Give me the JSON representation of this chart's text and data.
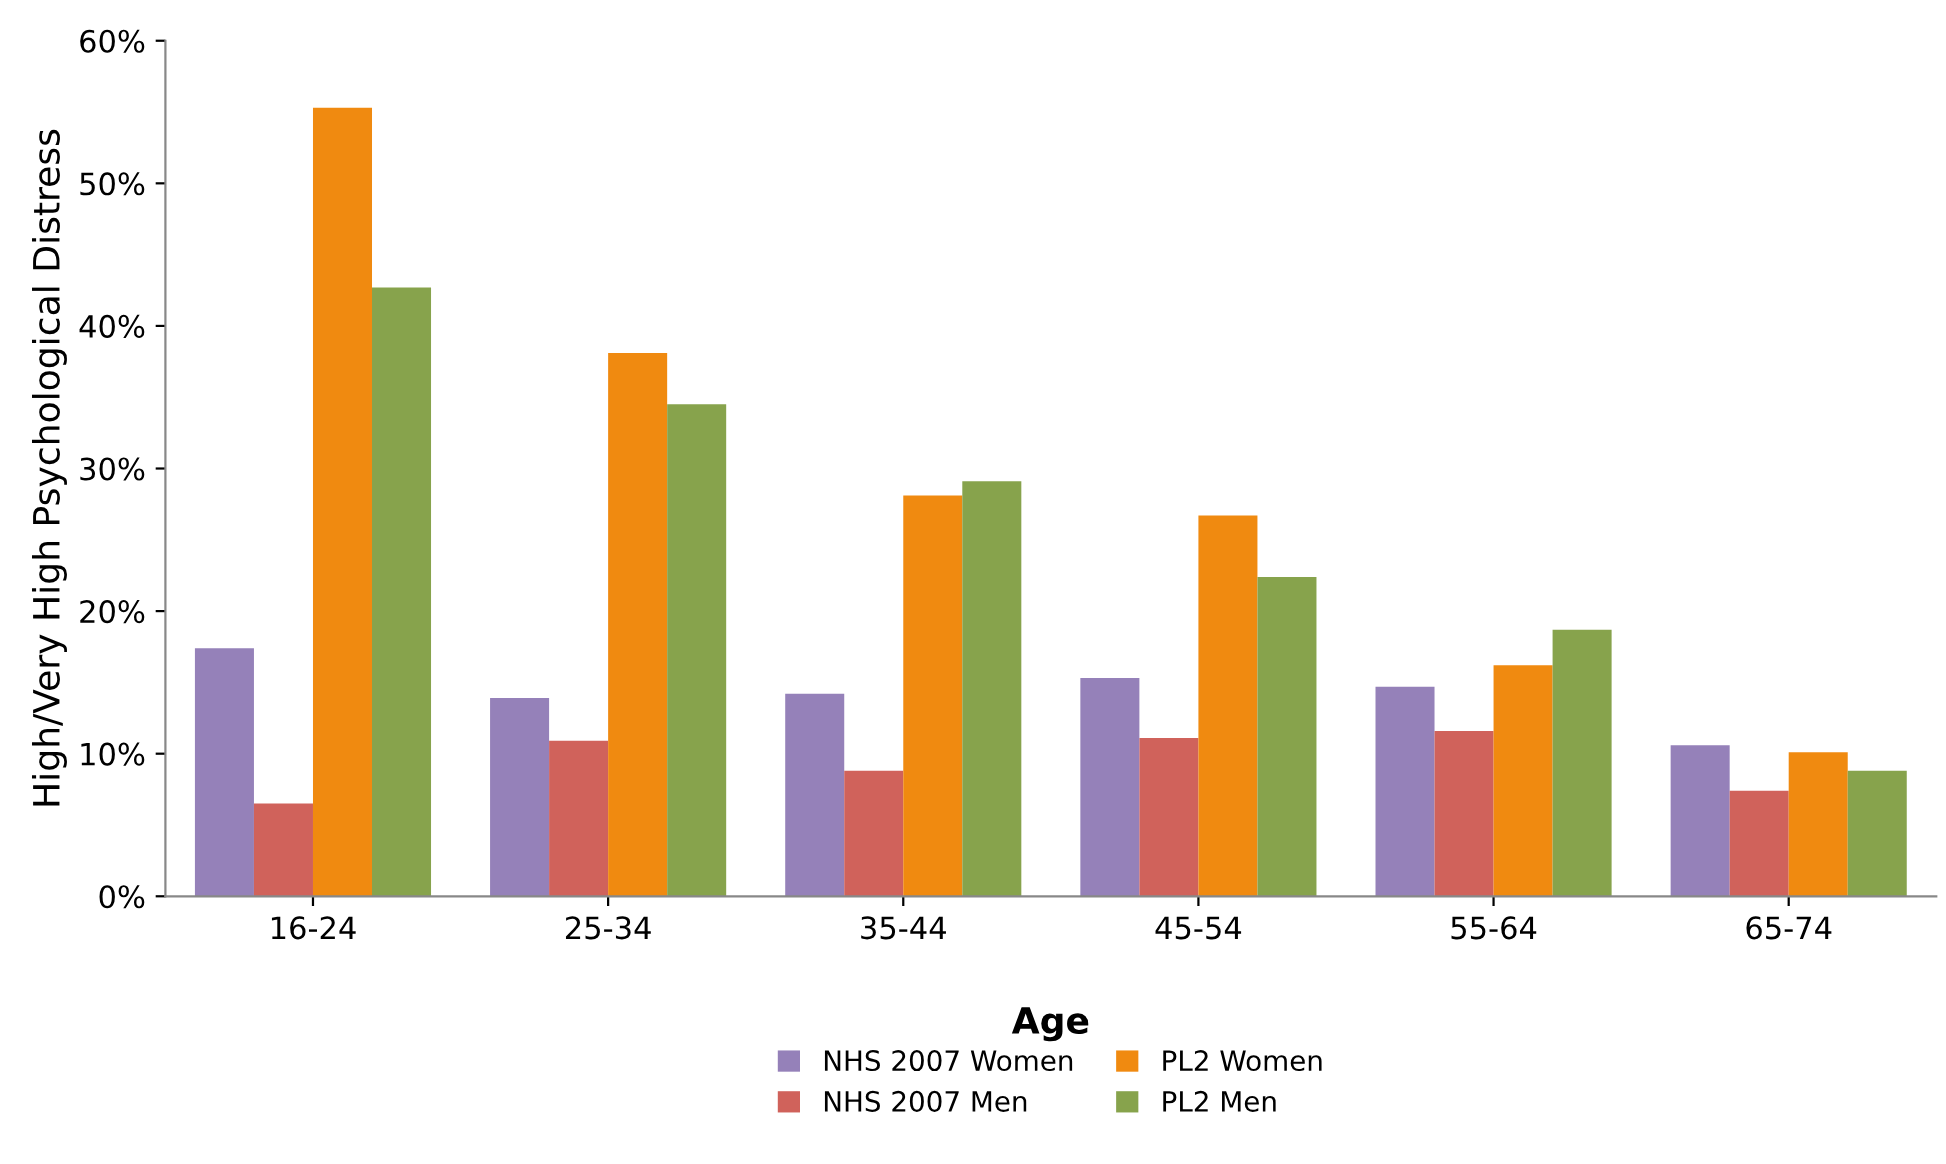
{
  "chart_data": {
    "type": "bar",
    "xlabel": "Age",
    "ylabel": "High/Very High Psychological Distress",
    "categories": [
      "16-24",
      "25-34",
      "35-44",
      "45-54",
      "55-64",
      "65-74"
    ],
    "series": [
      {
        "name": "NHS 2007 Women",
        "color": "#9581b9",
        "values": [
          17.4,
          13.9,
          14.2,
          15.3,
          14.7,
          10.6
        ]
      },
      {
        "name": "NHS 2007 Men",
        "color": "#d0625b",
        "values": [
          6.5,
          10.9,
          8.8,
          11.1,
          11.6,
          7.4
        ]
      },
      {
        "name": "PL2 Women",
        "color": "#f08a10",
        "values": [
          55.3,
          38.1,
          28.1,
          26.7,
          16.2,
          10.1
        ]
      },
      {
        "name": "PL2 Men",
        "color": "#87a34c",
        "values": [
          42.7,
          34.5,
          29.1,
          22.4,
          18.7,
          8.8
        ]
      }
    ],
    "ylim": [
      0,
      60
    ],
    "yticks": [
      {
        "value": 0,
        "label": "0%"
      },
      {
        "value": 10,
        "label": "10%"
      },
      {
        "value": 20,
        "label": "20%"
      },
      {
        "value": 30,
        "label": "30%"
      },
      {
        "value": 40,
        "label": "40%"
      },
      {
        "value": 50,
        "label": "50%"
      },
      {
        "value": 60,
        "label": "60%"
      }
    ],
    "grid": false,
    "legend": "bottom"
  }
}
